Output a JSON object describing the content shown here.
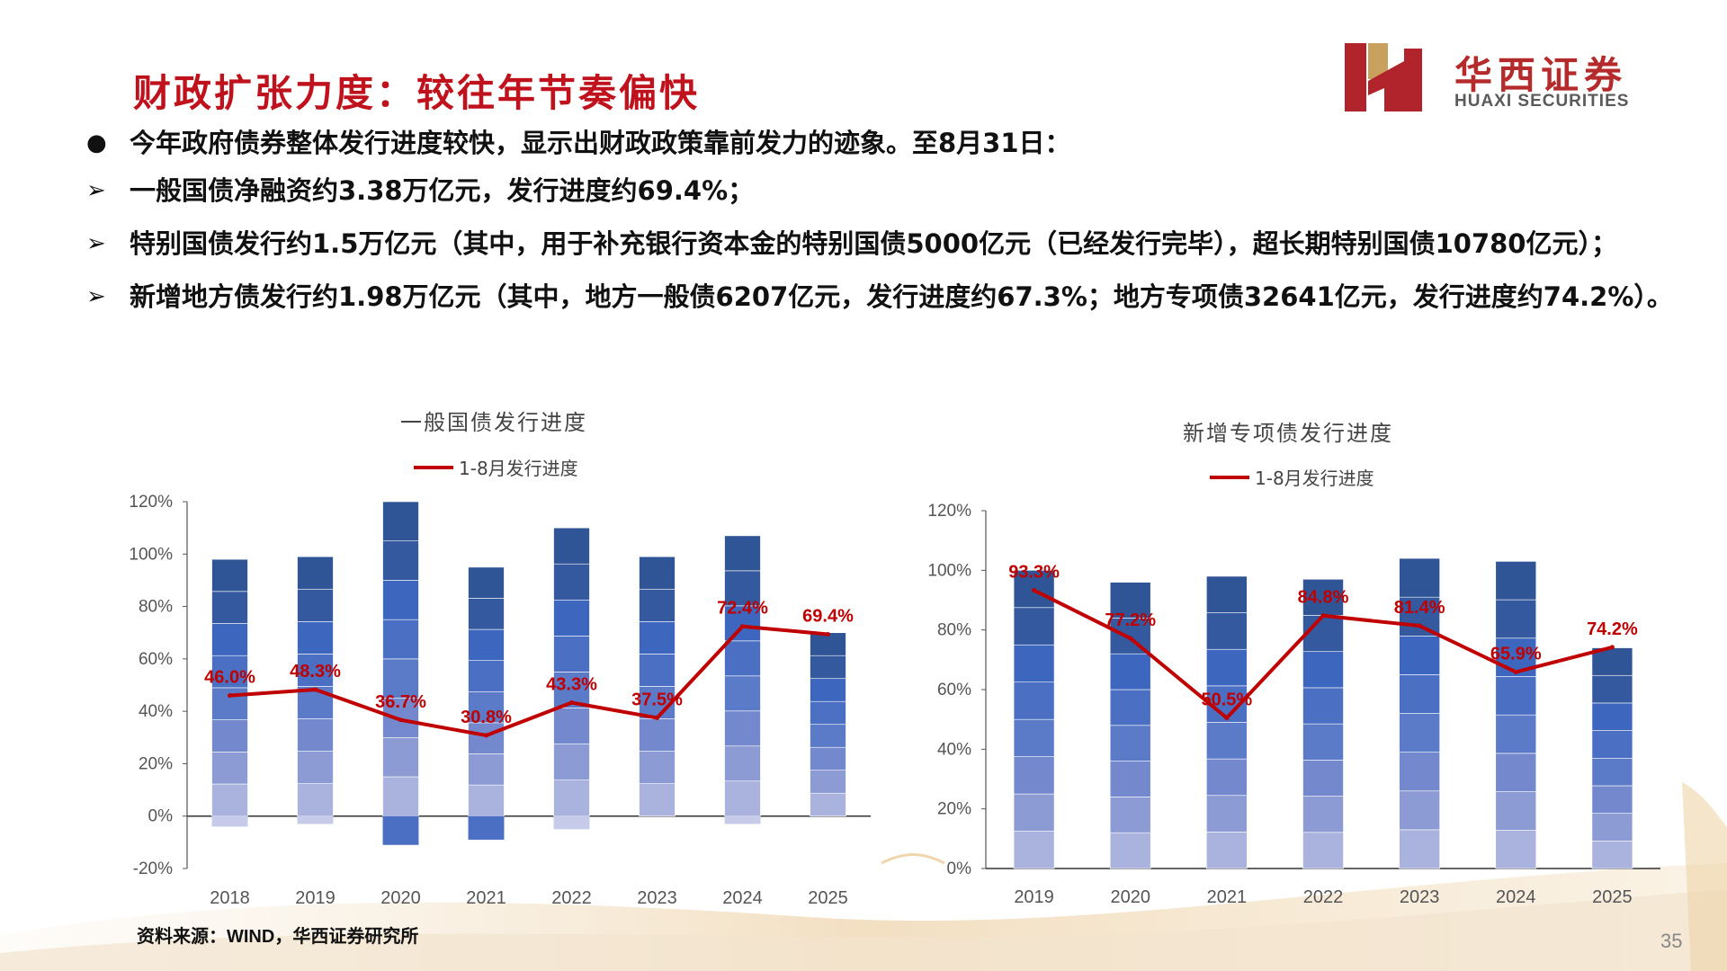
{
  "slide": {
    "title": "财政扩张力度：较往年节奏偏快",
    "page_number": "35",
    "source": "资料来源：WIND，华西证券研究所",
    "colors": {
      "title": "#c0121d",
      "line": "#c00000",
      "bar_dark": "#2f5597",
      "bar_light": "#c5cbe8"
    }
  },
  "logo": {
    "name_cn": "华西证券",
    "name_en": "HUAXI SECURITIES"
  },
  "bullets": [
    {
      "marker": "●",
      "text": "今年政府债券整体发行进度较快，显示出财政政策靠前发力的迹象。至8月31日："
    },
    {
      "marker": "➢",
      "text": "一般国债净融资约3.38万亿元，发行进度约69.4%；"
    },
    {
      "marker": "➢",
      "text": "特别国债发行约1.5万亿元（其中，用于补充银行资本金的特别国债5000亿元（已经发行完毕），超长期特别国债10780亿元）；"
    },
    {
      "marker": "➢",
      "text": "新增地方债发行约1.98万亿元（其中，地方一般债6207亿元，发行进度约67.3%；地方专项债32641亿元，发行进度约74.2%）。"
    }
  ],
  "chart_data": [
    {
      "type": "bar",
      "title": "一般国债发行进度",
      "categories": [
        "2018",
        "2019",
        "2020",
        "2021",
        "2022",
        "2023",
        "2024",
        "2025"
      ],
      "ylim": [
        -20,
        120
      ],
      "yticks": [
        "-20%",
        "0%",
        "20%",
        "40%",
        "60%",
        "80%",
        "100%",
        "120%"
      ],
      "legend": "top",
      "stacked_bar_totals": [
        98,
        99,
        120,
        95,
        110,
        99,
        107,
        70
      ],
      "stacked_bar_negatives": [
        -4,
        -3,
        -11,
        -9,
        -5,
        0,
        -3,
        0
      ],
      "series": [
        {
          "name": "1-8月发行进度",
          "type": "line",
          "values": [
            46.0,
            48.3,
            36.7,
            30.8,
            43.3,
            37.5,
            72.4,
            69.4
          ],
          "labels": [
            "46.0%",
            "48.3%",
            "36.7%",
            "30.8%",
            "43.3%",
            "37.5%",
            "72.4%",
            "69.4%"
          ]
        }
      ]
    },
    {
      "type": "bar",
      "title": "新增专项债发行进度",
      "categories": [
        "2019",
        "2020",
        "2021",
        "2022",
        "2023",
        "2024",
        "2025"
      ],
      "ylim": [
        0,
        120
      ],
      "yticks": [
        "0%",
        "20%",
        "40%",
        "60%",
        "80%",
        "100%",
        "120%"
      ],
      "legend": "top",
      "stacked_bar_totals": [
        100,
        96,
        98,
        97,
        104,
        103,
        74
      ],
      "series": [
        {
          "name": "1-8月发行进度",
          "type": "line",
          "values": [
            93.3,
            77.2,
            50.5,
            84.8,
            81.4,
            65.9,
            74.2
          ],
          "labels": [
            "93.3%",
            "77.2%",
            "50.5%",
            "84.8%",
            "81.4%",
            "65.9%",
            "74.2%"
          ]
        }
      ]
    }
  ]
}
